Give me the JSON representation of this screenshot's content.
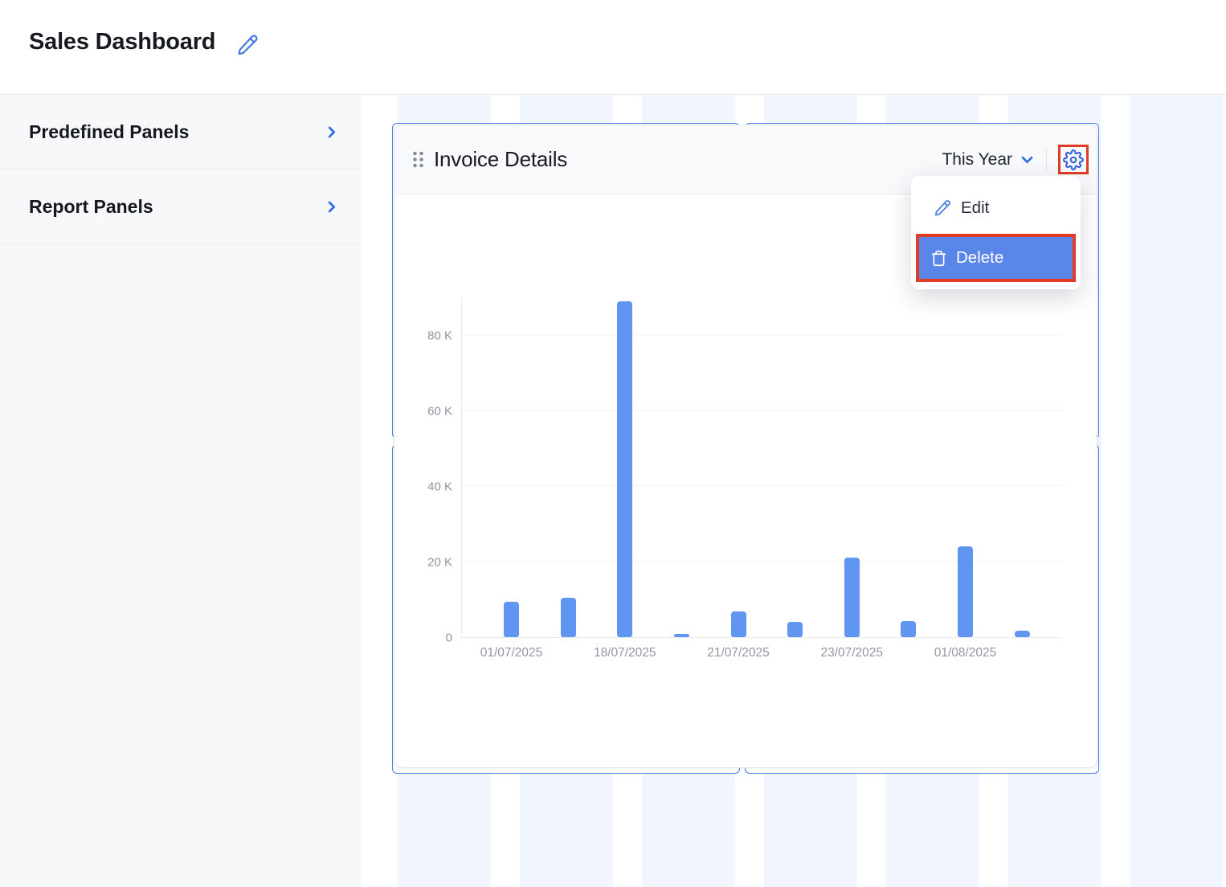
{
  "app": {
    "title": "Sales Dashboard"
  },
  "sidebar": {
    "items": [
      {
        "label": "Predefined Panels"
      },
      {
        "label": "Report Panels"
      }
    ]
  },
  "panel": {
    "title": "Invoice Details",
    "range_label": "This Year",
    "menu": {
      "edit_label": "Edit",
      "delete_label": "Delete"
    }
  },
  "chart_data": {
    "type": "bar",
    "title": "Invoice Details",
    "categories": [
      "01/07/2025",
      "",
      "18/07/2025",
      "",
      "21/07/2025",
      "",
      "23/07/2025",
      "",
      "01/08/2025",
      ""
    ],
    "values": [
      9300,
      10500,
      89000,
      800,
      6900,
      4000,
      21000,
      4200,
      24000,
      1700
    ],
    "y_ticks": [
      0,
      20000,
      40000,
      60000,
      80000
    ],
    "y_tick_labels": [
      "0",
      "20 K",
      "40 K",
      "60 K",
      "80 K"
    ],
    "ylim": [
      0,
      90000
    ],
    "xlabel": "",
    "ylabel": "",
    "grid": "horizontal",
    "legend": "none",
    "bar_color": "#6095f2"
  },
  "colors": {
    "accent_blue": "#3b6fe0",
    "gear_blue": "#2f62d9",
    "outline_blue": "#4d7ee2",
    "highlight_red": "#e03b24",
    "delete_bg": "#5b86e9",
    "stripe": "#f1f5fd",
    "bar": "#6095f2"
  }
}
